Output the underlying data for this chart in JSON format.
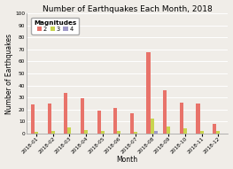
{
  "title": "Number of Earthquakes Each Month, 2018",
  "xlabel": "Month",
  "ylabel": "Number of Earthquakes",
  "months": [
    "2018-01",
    "2018-02",
    "2018-03",
    "2018-04",
    "2018-05",
    "2018-06",
    "2018-07",
    "2018-08",
    "2018-09",
    "2018-10",
    "2018-11",
    "2018-12"
  ],
  "mag2": [
    24,
    25,
    34,
    29,
    19,
    21,
    17,
    68,
    36,
    26,
    25,
    8
  ],
  "mag3": [
    1,
    2,
    5,
    3,
    2,
    2,
    1,
    12,
    6,
    4,
    2,
    2
  ],
  "mag4": [
    0,
    0,
    0,
    0,
    0,
    0,
    0,
    2,
    0,
    0,
    0,
    0
  ],
  "color2": "#e8736a",
  "color3": "#c8d44e",
  "color4": "#a09ac8",
  "ylim": [
    0,
    100
  ],
  "yticks": [
    0,
    10,
    20,
    30,
    40,
    50,
    60,
    70,
    80,
    90,
    100
  ],
  "legend_title": "Magnitudes",
  "legend_labels": [
    "2",
    "3",
    "4"
  ],
  "bg_color": "#f0ede8",
  "plot_bg_color": "#f0ede8",
  "grid_color": "#ffffff",
  "title_fontsize": 6.5,
  "axis_label_fontsize": 5.5,
  "tick_fontsize": 4.2,
  "legend_fontsize": 4.8,
  "legend_title_fontsize": 5.2
}
